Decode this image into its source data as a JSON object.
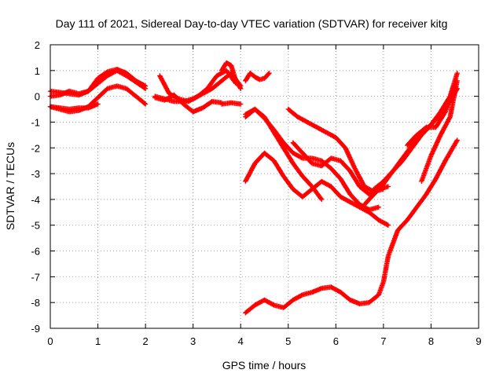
{
  "chart_data": {
    "type": "scatter",
    "title": "Day 111 of 2021, Sidereal Day-to-day VTEC variation (SDTVAR) for receiver kitg",
    "xlabel": "GPS time / hours",
    "ylabel": "SDTVAR / TECUs",
    "xlim": [
      0,
      9
    ],
    "ylim": [
      -9,
      2
    ],
    "x_ticks": [
      "0",
      "1",
      "2",
      "3",
      "4",
      "5",
      "6",
      "7",
      "8",
      "9"
    ],
    "y_ticks": [
      "2",
      "1",
      "0",
      "-1",
      "-2",
      "-3",
      "-4",
      "-5",
      "-6",
      "-7",
      "-8",
      "-9"
    ],
    "grid": true,
    "grid_style": "dotted",
    "marker": "plus",
    "color": "#ff0000",
    "series": [
      {
        "x": [
          0.0,
          0.2,
          0.4,
          0.6,
          0.8,
          1.0,
          1.2,
          1.4,
          1.6,
          1.8,
          2.0
        ],
        "y": [
          0.2,
          0.15,
          0.1,
          0.05,
          0.2,
          0.7,
          0.95,
          1.05,
          0.9,
          0.6,
          0.4
        ]
      },
      {
        "x": [
          0.0,
          0.2,
          0.4,
          0.6,
          0.8,
          1.0,
          1.2,
          1.4,
          1.6,
          1.8,
          2.0
        ],
        "y": [
          0.0,
          0.05,
          0.2,
          0.1,
          0.2,
          0.5,
          0.8,
          1.0,
          0.8,
          0.55,
          0.3
        ]
      },
      {
        "x": [
          0.0,
          0.2,
          0.4,
          0.6,
          0.8,
          1.0,
          1.2,
          1.4,
          1.6,
          1.8,
          2.0
        ],
        "y": [
          -0.4,
          -0.5,
          -0.6,
          -0.55,
          -0.4,
          -0.05,
          0.3,
          0.4,
          0.3,
          0.0,
          -0.3
        ]
      },
      {
        "x": [
          0.0,
          0.2,
          0.4,
          0.6,
          0.8,
          1.0
        ],
        "y": [
          -0.4,
          -0.45,
          -0.5,
          -0.45,
          -0.45,
          -0.3
        ]
      },
      {
        "x": [
          2.3,
          2.5,
          2.7,
          2.9,
          3.1,
          3.3,
          3.5,
          3.7,
          3.9
        ],
        "y": [
          0.8,
          0.1,
          -0.1,
          -0.2,
          0.0,
          0.3,
          0.8,
          1.0,
          0.5
        ]
      },
      {
        "x": [
          2.2,
          2.4,
          2.6,
          2.8,
          3.0,
          3.2,
          3.4,
          3.6,
          3.8,
          4.0
        ],
        "y": [
          0.0,
          -0.1,
          -0.2,
          -0.2,
          -0.1,
          0.1,
          0.3,
          0.6,
          0.9,
          0.4
        ]
      },
      {
        "x": [
          2.2,
          2.4,
          2.6,
          2.8,
          3.0,
          3.2,
          3.4,
          3.6
        ],
        "y": [
          -0.05,
          -0.15,
          0.05,
          -0.3,
          -0.6,
          -0.45,
          -0.2,
          -0.25
        ]
      },
      {
        "x": [
          3.6,
          3.7,
          3.8,
          3.9,
          4.0
        ],
        "y": [
          1.0,
          1.3,
          1.2,
          0.6,
          0.3
        ]
      },
      {
        "x": [
          3.6,
          3.8,
          4.0
        ],
        "y": [
          -0.3,
          -0.25,
          -0.3
        ]
      },
      {
        "x": [
          4.1,
          4.2,
          4.3,
          4.4,
          4.5,
          4.6
        ],
        "y": [
          0.6,
          0.9,
          0.75,
          0.65,
          0.7,
          0.9
        ]
      },
      {
        "x": [
          4.1,
          4.3,
          4.5,
          4.7,
          4.9,
          5.1,
          5.3,
          5.5,
          5.7
        ],
        "y": [
          -0.8,
          -0.5,
          -0.8,
          -1.4,
          -2.0,
          -2.6,
          -3.1,
          -3.5,
          -4.0
        ]
      },
      {
        "x": [
          4.1,
          4.3,
          4.5,
          4.7,
          4.9,
          5.1,
          5.3,
          5.5,
          5.7,
          5.9,
          6.1,
          6.3,
          6.5,
          6.7,
          6.9
        ],
        "y": [
          -0.7,
          -0.5,
          -0.85,
          -1.3,
          -1.8,
          -2.2,
          -2.4,
          -2.4,
          -2.5,
          -2.8,
          -3.2,
          -3.8,
          -4.2,
          -4.4,
          -4.3
        ]
      },
      {
        "x": [
          4.1,
          4.3,
          4.5,
          4.7,
          4.9,
          5.1,
          5.3,
          5.5,
          5.7,
          5.9,
          6.1,
          6.3,
          6.5,
          6.7,
          6.9,
          7.1
        ],
        "y": [
          -3.3,
          -2.6,
          -2.2,
          -2.5,
          -3.1,
          -3.6,
          -3.9,
          -3.6,
          -3.3,
          -3.5,
          -3.9,
          -4.1,
          -4.3,
          -4.5,
          -4.8,
          -5.0
        ]
      },
      {
        "x": [
          5.0,
          5.2,
          5.4,
          5.6,
          5.8,
          6.0,
          6.2,
          6.4,
          6.6,
          6.8,
          7.0
        ],
        "y": [
          -0.5,
          -0.8,
          -1.0,
          -1.2,
          -1.4,
          -1.6,
          -2.0,
          -2.8,
          -3.5,
          -3.7,
          -3.6
        ]
      },
      {
        "x": [
          5.1,
          5.3,
          5.5,
          5.7,
          5.9,
          6.1,
          6.3,
          6.5,
          6.7,
          6.9,
          7.1
        ],
        "y": [
          -1.8,
          -2.2,
          -2.6,
          -2.7,
          -2.4,
          -2.5,
          -2.9,
          -3.5,
          -3.8,
          -3.6,
          -3.5
        ]
      },
      {
        "x": [
          6.6,
          6.8,
          7.0,
          7.2,
          7.4,
          7.6,
          7.8,
          8.0,
          8.2,
          8.4,
          8.55
        ],
        "y": [
          -4.2,
          -3.8,
          -3.4,
          -2.9,
          -2.5,
          -2.0,
          -1.5,
          -1.1,
          -0.7,
          -0.2,
          0.3
        ]
      },
      {
        "x": [
          6.8,
          7.0,
          7.2,
          7.4,
          7.6,
          7.8,
          8.0,
          8.2,
          8.4,
          8.55
        ],
        "y": [
          -3.6,
          -3.3,
          -2.9,
          -2.4,
          -1.9,
          -1.5,
          -1.1,
          -0.6,
          0.0,
          0.9
        ]
      },
      {
        "x": [
          7.5,
          7.7,
          7.9,
          8.1,
          8.3,
          8.5
        ],
        "y": [
          -1.9,
          -1.5,
          -1.2,
          -1.2,
          -0.6,
          0.4
        ]
      },
      {
        "x": [
          7.8,
          8.0,
          8.2,
          8.4,
          8.55
        ],
        "y": [
          -3.3,
          -2.3,
          -1.5,
          -0.8,
          0.6
        ]
      },
      {
        "x": [
          4.1,
          4.3,
          4.5,
          4.7,
          4.9,
          5.1,
          5.3,
          5.5,
          5.7,
          5.9,
          6.1,
          6.3,
          6.5,
          6.7,
          6.9,
          7.0,
          7.1,
          7.3,
          7.5,
          7.7,
          7.9,
          8.1,
          8.3,
          8.55
        ],
        "y": [
          -8.4,
          -8.1,
          -7.9,
          -8.1,
          -8.2,
          -7.9,
          -7.7,
          -7.6,
          -7.45,
          -7.4,
          -7.6,
          -7.9,
          -8.05,
          -8.0,
          -7.7,
          -7.2,
          -6.2,
          -5.2,
          -4.8,
          -4.3,
          -3.8,
          -3.2,
          -2.5,
          -1.7
        ]
      }
    ]
  }
}
